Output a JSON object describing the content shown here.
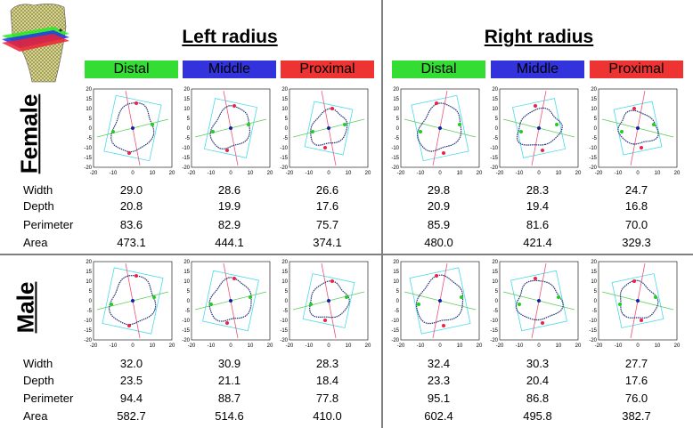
{
  "sides": [
    {
      "id": "left",
      "title": "Left radius"
    },
    {
      "id": "right",
      "title": "Right radius"
    }
  ],
  "levels": [
    {
      "label": "Distal",
      "color": "#33dd33"
    },
    {
      "label": "Middle",
      "color": "#3333dd"
    },
    {
      "label": "Proximal",
      "color": "#ee3333"
    }
  ],
  "sexes": [
    {
      "label": "Female"
    },
    {
      "label": "Male"
    }
  ],
  "metric_labels": [
    "Width",
    "Depth",
    "Perimeter",
    "Area"
  ],
  "axis": {
    "xticks": [
      "-20",
      "-10",
      "0",
      "10",
      "20"
    ],
    "yticks": [
      "20",
      "15",
      "10",
      "5",
      "0",
      "-5",
      "-10",
      "-15",
      "-20"
    ]
  },
  "table": {
    "Female": {
      "left": [
        [
          "29.0",
          "20.8",
          "83.6",
          "473.1"
        ],
        [
          "28.6",
          "19.9",
          "82.9",
          "444.1"
        ],
        [
          "26.6",
          "17.6",
          "75.7",
          "374.1"
        ]
      ],
      "right": [
        [
          "29.8",
          "20.9",
          "85.9",
          "480.0"
        ],
        [
          "28.3",
          "19.4",
          "81.6",
          "421.4"
        ],
        [
          "24.7",
          "16.8",
          "70.0",
          "329.3"
        ]
      ]
    },
    "Male": {
      "left": [
        [
          "32.0",
          "23.5",
          "94.4",
          "582.7"
        ],
        [
          "30.9",
          "21.1",
          "88.7",
          "514.6"
        ],
        [
          "28.3",
          "18.4",
          "77.8",
          "410.0"
        ]
      ],
      "right": [
        [
          "32.4",
          "23.3",
          "95.1",
          "602.4"
        ],
        [
          "30.3",
          "20.4",
          "86.8",
          "495.8"
        ],
        [
          "27.7",
          "17.6",
          "76.0",
          "382.7"
        ]
      ]
    }
  }
}
